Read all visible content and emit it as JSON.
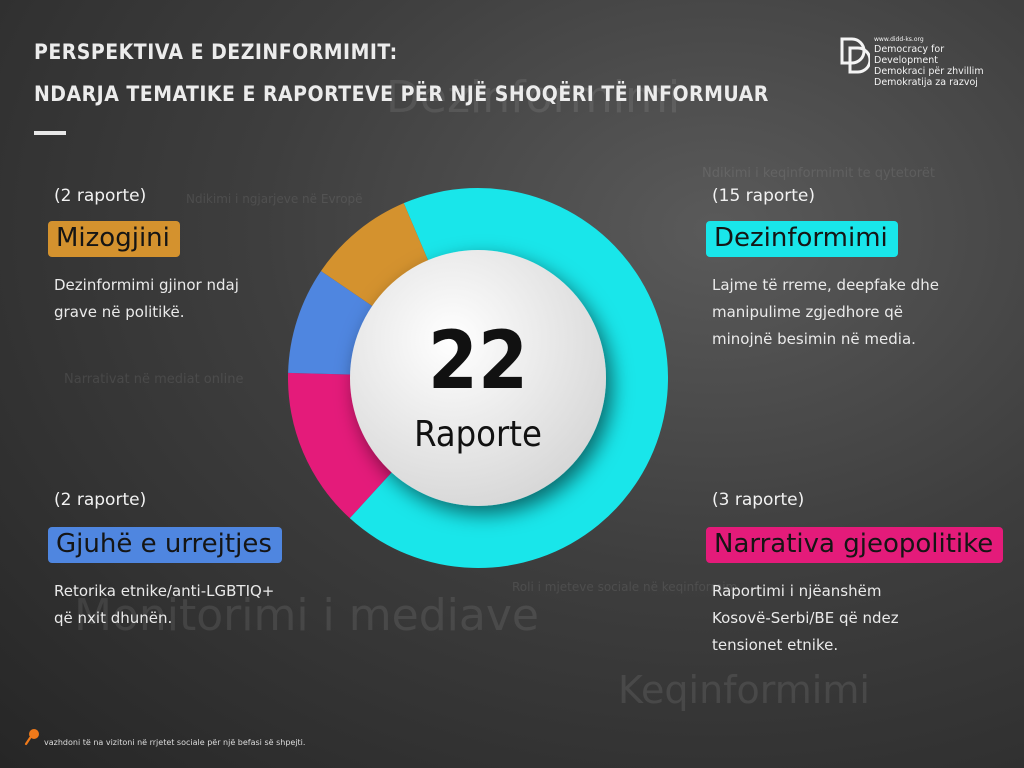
{
  "header": {
    "title_line1": "PERSPEKTIVA E DEZINFORMIMIT:",
    "title_line2": "NDARJA TEMATIKE E RAPORTEVE PËR NJË SHOQËRI TË INFORMUAR"
  },
  "logo": {
    "url": "www.didd-ks.org",
    "line1": "Democracy for Development",
    "line2": "Demokraci për zhvillim",
    "line3": "Demokratija za razvoj"
  },
  "background_words": [
    "Dezinformimi",
    "Ndikimi i keqinformimit te qytetorët",
    "Ndikimi i ngjarjeve në Evropë",
    "Narrativat në mediat online",
    "Roli i mjeteve sociale në keqinformim",
    "Monitorimi i mediave",
    "Keqinformimi"
  ],
  "chart_data": {
    "type": "pie",
    "variant": "donut",
    "center_value": "22",
    "center_label": "Raporte",
    "slices": [
      {
        "label": "Dezinformimi",
        "value": 15,
        "color": "#19e6ea"
      },
      {
        "label": "Narrativa gjeopolitike",
        "value": 3,
        "color": "#e41b7a"
      },
      {
        "label": "Gjuhë e urrejtjes",
        "value": 2,
        "color": "#4f86e0"
      },
      {
        "label": "Mizogjini",
        "value": 2,
        "color": "#d4922e"
      }
    ]
  },
  "categories": {
    "mizogjini": {
      "count": "(2 raporte)",
      "label": "Mizogjini",
      "color": "#d4922e",
      "desc1": "Dezinformimi gjinor ndaj",
      "desc2": "grave në politikë."
    },
    "dezinformimi": {
      "count": "(15 raporte)",
      "label": "Dezinformimi",
      "color": "#19e6ea",
      "desc1": "Lajme të rreme, deepfake dhe",
      "desc2": "manipulime zgjedhore që",
      "desc3": "minojnë besimin në media."
    },
    "gjuhe": {
      "count": "(2 raporte)",
      "label": "Gjuhë e urrejtjes",
      "color": "#4f86e0",
      "desc1": "Retorika etnike/anti-LGBTIQ+",
      "desc2": "që nxit dhunën."
    },
    "narrativa": {
      "count": "(3 raporte)",
      "label": "Narrativa gjeopolitike",
      "color": "#e41b7a",
      "desc1": "Raportimi i njëanshëm",
      "desc2": "Kosovë-Serbi/BE që ndez",
      "desc3": "tensionet etnike."
    }
  },
  "footer": {
    "text": "vazhdoni të na vizitoni në rrjetet sociale për një befasi së shpejti."
  }
}
